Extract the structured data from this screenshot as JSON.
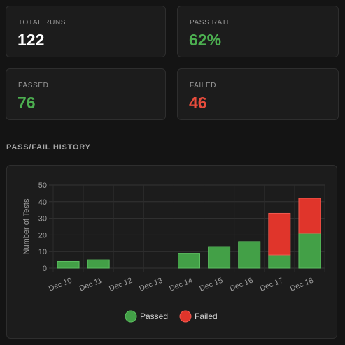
{
  "stats": {
    "total_runs": {
      "label": "TOTAL RUNS",
      "value": "122",
      "color": "#ffffff"
    },
    "pass_rate": {
      "label": "PASS RATE",
      "value": "62%",
      "color": "#4caf50"
    },
    "passed": {
      "label": "PASSED",
      "value": "76",
      "color": "#4caf50"
    },
    "failed": {
      "label": "FAILED",
      "value": "46",
      "color": "#e74c3c"
    }
  },
  "history": {
    "title": "PASS/FAIL HISTORY"
  },
  "colors": {
    "passed": "#43a047",
    "failed": "#e0352b",
    "background": "#141414",
    "card": "#1c1c1c"
  },
  "chart_data": {
    "type": "bar",
    "stacked": true,
    "categories": [
      "Dec 10",
      "Dec 11",
      "Dec 12",
      "Dec 13",
      "Dec 14",
      "Dec 15",
      "Dec 16",
      "Dec 17",
      "Dec 18"
    ],
    "series": [
      {
        "name": "Passed",
        "values": [
          4,
          5,
          0,
          0,
          9,
          13,
          16,
          8,
          21
        ]
      },
      {
        "name": "Failed",
        "values": [
          0,
          0,
          0,
          0,
          0,
          0,
          0,
          25,
          21
        ]
      }
    ],
    "ylabel": "Number of Tests",
    "ylim": [
      0,
      50
    ],
    "yticks": [
      0,
      10,
      20,
      30,
      40,
      50
    ],
    "grid": true,
    "legend": "bottom"
  }
}
